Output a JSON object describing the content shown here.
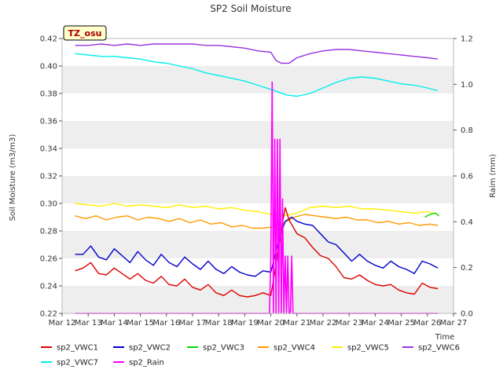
{
  "chart_data": {
    "type": "line",
    "title": "SP2 Soil Moisture",
    "xlabel": "Time",
    "ylabel": "Soil Moisture (m3/m3)",
    "y2label": "Raim (mm)",
    "site_label": "TZ_osu",
    "x_ticks": [
      "Mar 12",
      "Mar 13",
      "Mar 14",
      "Mar 15",
      "Mar 16",
      "Mar 17",
      "Mar 18",
      "Mar 19",
      "Mar 20",
      "Mar 21",
      "Mar 22",
      "Mar 23",
      "Mar 24",
      "Mar 25",
      "Mar 26",
      "Mar 27"
    ],
    "xlim": [
      0,
      15
    ],
    "ylim": [
      0.22,
      0.42
    ],
    "y_ticks": [
      "0.22",
      "0.24",
      "0.26",
      "0.28",
      "0.30",
      "0.32",
      "0.34",
      "0.36",
      "0.38",
      "0.40",
      "0.42"
    ],
    "y2lim": [
      0.0,
      1.2
    ],
    "y2_ticks": [
      "0.0",
      "0.2",
      "0.4",
      "0.6",
      "0.8",
      "1.0",
      "1.2"
    ],
    "legend_position": "bottom",
    "grid": "horizontal bands",
    "series": [
      {
        "name": "sp2_VWC1",
        "axis": "left",
        "color": "#dd0000",
        "x": [
          0.5,
          0.8,
          1.1,
          1.4,
          1.7,
          2.0,
          2.3,
          2.6,
          2.9,
          3.2,
          3.5,
          3.8,
          4.1,
          4.4,
          4.7,
          5.0,
          5.3,
          5.6,
          5.9,
          6.2,
          6.5,
          6.8,
          7.1,
          7.4,
          7.7,
          8.0,
          8.2,
          8.4,
          8.55,
          8.7,
          9.0,
          9.3,
          9.6,
          9.9,
          10.2,
          10.5,
          10.8,
          11.1,
          11.4,
          11.7,
          12.0,
          12.3,
          12.6,
          12.9,
          13.2,
          13.5,
          13.8,
          14.1,
          14.4
        ],
        "y": [
          0.251,
          0.253,
          0.257,
          0.249,
          0.248,
          0.253,
          0.249,
          0.245,
          0.249,
          0.244,
          0.242,
          0.247,
          0.241,
          0.24,
          0.245,
          0.239,
          0.237,
          0.241,
          0.235,
          0.233,
          0.237,
          0.233,
          0.232,
          0.233,
          0.235,
          0.233,
          0.255,
          0.281,
          0.297,
          0.288,
          0.278,
          0.275,
          0.268,
          0.262,
          0.26,
          0.254,
          0.246,
          0.245,
          0.248,
          0.244,
          0.241,
          0.24,
          0.241,
          0.237,
          0.235,
          0.234,
          0.242,
          0.239,
          0.238
        ]
      },
      {
        "name": "sp2_VWC2",
        "axis": "left",
        "color": "#0000cc",
        "x": [
          0.5,
          0.8,
          1.1,
          1.4,
          1.7,
          2.0,
          2.3,
          2.6,
          2.9,
          3.2,
          3.5,
          3.8,
          4.1,
          4.4,
          4.7,
          5.0,
          5.3,
          5.6,
          5.9,
          6.2,
          6.5,
          6.8,
          7.1,
          7.4,
          7.7,
          8.0,
          8.2,
          8.4,
          8.55,
          8.8,
          9.0,
          9.3,
          9.6,
          9.9,
          10.2,
          10.5,
          10.8,
          11.1,
          11.4,
          11.7,
          12.0,
          12.3,
          12.6,
          12.9,
          13.2,
          13.5,
          13.8,
          14.1,
          14.4
        ],
        "y": [
          0.263,
          0.263,
          0.269,
          0.261,
          0.259,
          0.267,
          0.262,
          0.257,
          0.265,
          0.259,
          0.255,
          0.263,
          0.257,
          0.254,
          0.261,
          0.256,
          0.252,
          0.258,
          0.252,
          0.249,
          0.254,
          0.25,
          0.248,
          0.247,
          0.251,
          0.25,
          0.265,
          0.279,
          0.287,
          0.29,
          0.287,
          0.285,
          0.284,
          0.278,
          0.272,
          0.27,
          0.264,
          0.258,
          0.263,
          0.258,
          0.255,
          0.253,
          0.258,
          0.254,
          0.252,
          0.249,
          0.258,
          0.256,
          0.253
        ]
      },
      {
        "name": "sp2_VWC3",
        "axis": "left",
        "color": "#00dd00",
        "x": [
          13.9,
          14.1,
          14.3,
          14.45
        ],
        "y": [
          0.29,
          0.292,
          0.293,
          0.291
        ]
      },
      {
        "name": "sp2_VWC4",
        "axis": "left",
        "color": "#ff9900",
        "x": [
          0.5,
          0.9,
          1.3,
          1.7,
          2.1,
          2.5,
          2.9,
          3.3,
          3.7,
          4.1,
          4.5,
          4.9,
          5.3,
          5.7,
          6.1,
          6.5,
          6.9,
          7.3,
          7.7,
          8.1,
          8.5,
          8.9,
          9.3,
          9.7,
          10.1,
          10.5,
          10.9,
          11.3,
          11.7,
          12.1,
          12.5,
          12.9,
          13.3,
          13.7,
          14.1,
          14.4
        ],
        "y": [
          0.291,
          0.289,
          0.291,
          0.288,
          0.29,
          0.291,
          0.288,
          0.29,
          0.289,
          0.287,
          0.289,
          0.286,
          0.288,
          0.285,
          0.286,
          0.283,
          0.284,
          0.282,
          0.282,
          0.283,
          0.286,
          0.29,
          0.292,
          0.291,
          0.29,
          0.289,
          0.29,
          0.288,
          0.288,
          0.286,
          0.287,
          0.285,
          0.286,
          0.284,
          0.285,
          0.284
        ]
      },
      {
        "name": "sp2_VWC5",
        "axis": "left",
        "color": "#ffee00",
        "x": [
          0.5,
          1.0,
          1.5,
          2.0,
          2.5,
          3.0,
          3.5,
          4.0,
          4.5,
          5.0,
          5.5,
          6.0,
          6.5,
          7.0,
          7.5,
          8.0,
          8.5,
          9.0,
          9.5,
          10.0,
          10.5,
          11.0,
          11.5,
          12.0,
          12.5,
          13.0,
          13.5,
          14.0,
          14.4
        ],
        "y": [
          0.3,
          0.299,
          0.298,
          0.3,
          0.298,
          0.299,
          0.298,
          0.297,
          0.299,
          0.297,
          0.298,
          0.296,
          0.297,
          0.295,
          0.294,
          0.292,
          0.291,
          0.293,
          0.297,
          0.298,
          0.297,
          0.298,
          0.296,
          0.296,
          0.295,
          0.294,
          0.293,
          0.294,
          0.292
        ]
      },
      {
        "name": "sp2_VWC6",
        "axis": "left",
        "color": "#9933dd",
        "x": [
          0.5,
          1.0,
          1.5,
          2.0,
          2.5,
          3.0,
          3.5,
          4.0,
          4.5,
          5.0,
          5.5,
          6.0,
          6.5,
          7.0,
          7.5,
          8.0,
          8.2,
          8.4,
          8.7,
          9.0,
          9.5,
          10.0,
          10.5,
          11.0,
          11.5,
          12.0,
          12.5,
          13.0,
          13.5,
          14.0,
          14.4
        ],
        "y": [
          0.415,
          0.415,
          0.416,
          0.415,
          0.416,
          0.415,
          0.416,
          0.416,
          0.416,
          0.416,
          0.415,
          0.415,
          0.414,
          0.413,
          0.411,
          0.41,
          0.404,
          0.402,
          0.402,
          0.406,
          0.409,
          0.411,
          0.412,
          0.412,
          0.411,
          0.41,
          0.409,
          0.408,
          0.407,
          0.406,
          0.405
        ]
      },
      {
        "name": "sp2_VWC7",
        "axis": "left",
        "color": "#00eeee",
        "x": [
          0.5,
          1.0,
          1.5,
          2.0,
          2.5,
          3.0,
          3.5,
          4.0,
          4.5,
          5.0,
          5.5,
          6.0,
          6.5,
          7.0,
          7.5,
          8.0,
          8.3,
          8.6,
          9.0,
          9.5,
          10.0,
          10.5,
          11.0,
          11.5,
          12.0,
          12.5,
          13.0,
          13.5,
          14.0,
          14.4
        ],
        "y": [
          0.409,
          0.408,
          0.407,
          0.407,
          0.406,
          0.405,
          0.403,
          0.402,
          0.4,
          0.398,
          0.395,
          0.393,
          0.391,
          0.389,
          0.386,
          0.383,
          0.381,
          0.379,
          0.378,
          0.38,
          0.384,
          0.388,
          0.391,
          0.392,
          0.391,
          0.389,
          0.387,
          0.386,
          0.384,
          0.382
        ]
      },
      {
        "name": "sp2_Rain",
        "axis": "right",
        "color": "#ff00ff",
        "x": [
          0.5,
          7.95,
          8.0,
          8.05,
          8.1,
          8.15,
          8.2,
          8.25,
          8.3,
          8.35,
          8.4,
          8.45,
          8.5,
          8.55,
          8.6,
          8.65,
          8.7,
          8.75,
          8.8,
          8.85,
          8.9,
          8.95,
          9.0,
          14.4
        ],
        "y": [
          0.0,
          0.0,
          0.25,
          1.01,
          0.0,
          0.76,
          0.0,
          0.76,
          0.0,
          0.76,
          0.0,
          0.5,
          0.0,
          0.25,
          0.0,
          0.25,
          0.0,
          0.0,
          0.25,
          0.0,
          0.0,
          0.0,
          0.0,
          0.0
        ]
      }
    ]
  }
}
